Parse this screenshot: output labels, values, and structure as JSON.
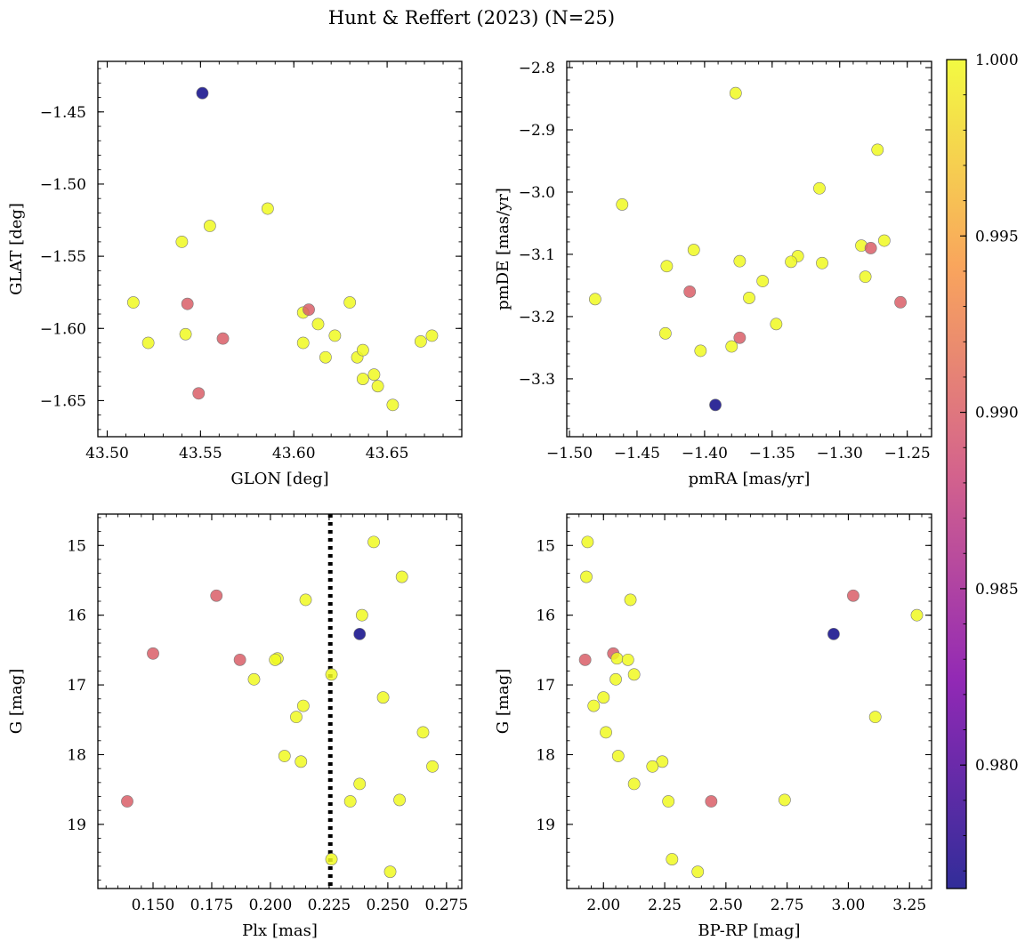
{
  "figure": {
    "title": "Hunt & Reffert (2023) (N=25)"
  },
  "colorbar": {
    "colormap": "plasma",
    "min": 0.9765,
    "max": 1.0,
    "ticks": [
      0.98,
      0.985,
      0.99,
      0.995,
      1.0
    ],
    "tick_labels": [
      "0.980",
      "0.985",
      "0.990",
      "0.995",
      "1.000"
    ]
  },
  "chart_data": [
    {
      "type": "scatter",
      "panel": "top-left",
      "xlabel": "GLON [deg]",
      "ylabel": "GLAT [deg]",
      "xlim": [
        43.495,
        43.69
      ],
      "ylim": [
        -1.675,
        -1.415
      ],
      "y_inverted": false,
      "xticks": [
        43.5,
        43.55,
        43.6,
        43.65
      ],
      "xtick_labels": [
        "43.50",
        "43.55",
        "43.60",
        "43.65"
      ],
      "yticks": [
        -1.45,
        -1.5,
        -1.55,
        -1.6,
        -1.65
      ],
      "ytick_labels": [
        "−1.45",
        "−1.50",
        "−1.55",
        "−1.60",
        "−1.65"
      ],
      "points": [
        {
          "x": 43.551,
          "y": -1.437,
          "p": 0.9765
        },
        {
          "x": 43.586,
          "y": -1.517,
          "p": 1.0
        },
        {
          "x": 43.555,
          "y": -1.529,
          "p": 1.0
        },
        {
          "x": 43.54,
          "y": -1.54,
          "p": 1.0
        },
        {
          "x": 43.514,
          "y": -1.582,
          "p": 1.0
        },
        {
          "x": 43.543,
          "y": -1.583,
          "p": 0.99
        },
        {
          "x": 43.522,
          "y": -1.61,
          "p": 1.0
        },
        {
          "x": 43.542,
          "y": -1.604,
          "p": 1.0
        },
        {
          "x": 43.562,
          "y": -1.607,
          "p": 0.99
        },
        {
          "x": 43.549,
          "y": -1.645,
          "p": 0.99
        },
        {
          "x": 43.605,
          "y": -1.589,
          "p": 1.0
        },
        {
          "x": 43.608,
          "y": -1.587,
          "p": 0.99
        },
        {
          "x": 43.613,
          "y": -1.597,
          "p": 1.0
        },
        {
          "x": 43.605,
          "y": -1.61,
          "p": 1.0
        },
        {
          "x": 43.617,
          "y": -1.62,
          "p": 1.0
        },
        {
          "x": 43.622,
          "y": -1.605,
          "p": 1.0
        },
        {
          "x": 43.63,
          "y": -1.582,
          "p": 1.0
        },
        {
          "x": 43.634,
          "y": -1.62,
          "p": 1.0
        },
        {
          "x": 43.637,
          "y": -1.615,
          "p": 1.0
        },
        {
          "x": 43.637,
          "y": -1.635,
          "p": 1.0
        },
        {
          "x": 43.643,
          "y": -1.632,
          "p": 1.0
        },
        {
          "x": 43.645,
          "y": -1.64,
          "p": 1.0
        },
        {
          "x": 43.653,
          "y": -1.653,
          "p": 1.0
        },
        {
          "x": 43.668,
          "y": -1.609,
          "p": 1.0
        },
        {
          "x": 43.674,
          "y": -1.605,
          "p": 1.0
        }
      ]
    },
    {
      "type": "scatter",
      "panel": "top-right",
      "xlabel": "pmRA [mas/yr]",
      "ylabel": "pmDE [mas/yr]",
      "xlim": [
        -1.502,
        -1.232
      ],
      "ylim": [
        -3.393,
        -2.79
      ],
      "y_inverted": false,
      "xticks": [
        -1.5,
        -1.45,
        -1.4,
        -1.35,
        -1.3,
        -1.25
      ],
      "xtick_labels": [
        "−1.50",
        "−1.45",
        "−1.40",
        "−1.35",
        "−1.30",
        "−1.25"
      ],
      "yticks": [
        -2.8,
        -2.9,
        -3.0,
        -3.1,
        -3.2,
        -3.3
      ],
      "ytick_labels": [
        "−2.8",
        "−2.9",
        "−3.0",
        "−3.1",
        "−3.2",
        "−3.3"
      ],
      "points": [
        {
          "x": -1.377,
          "y": -2.841,
          "p": 1.0
        },
        {
          "x": -1.272,
          "y": -2.932,
          "p": 1.0
        },
        {
          "x": -1.315,
          "y": -2.994,
          "p": 1.0
        },
        {
          "x": -1.461,
          "y": -3.02,
          "p": 1.0
        },
        {
          "x": -1.267,
          "y": -3.078,
          "p": 1.0
        },
        {
          "x": -1.284,
          "y": -3.086,
          "p": 1.0
        },
        {
          "x": -1.277,
          "y": -3.09,
          "p": 0.99
        },
        {
          "x": -1.408,
          "y": -3.093,
          "p": 1.0
        },
        {
          "x": -1.331,
          "y": -3.103,
          "p": 1.0
        },
        {
          "x": -1.374,
          "y": -3.111,
          "p": 1.0
        },
        {
          "x": -1.336,
          "y": -3.112,
          "p": 1.0
        },
        {
          "x": -1.313,
          "y": -3.114,
          "p": 1.0
        },
        {
          "x": -1.428,
          "y": -3.119,
          "p": 1.0
        },
        {
          "x": -1.281,
          "y": -3.136,
          "p": 1.0
        },
        {
          "x": -1.357,
          "y": -3.143,
          "p": 1.0
        },
        {
          "x": -1.411,
          "y": -3.16,
          "p": 0.99
        },
        {
          "x": -1.367,
          "y": -3.17,
          "p": 1.0
        },
        {
          "x": -1.481,
          "y": -3.172,
          "p": 1.0
        },
        {
          "x": -1.255,
          "y": -3.177,
          "p": 0.99
        },
        {
          "x": -1.347,
          "y": -3.212,
          "p": 1.0
        },
        {
          "x": -1.429,
          "y": -3.227,
          "p": 1.0
        },
        {
          "x": -1.374,
          "y": -3.234,
          "p": 0.99
        },
        {
          "x": -1.38,
          "y": -3.248,
          "p": 1.0
        },
        {
          "x": -1.403,
          "y": -3.255,
          "p": 1.0
        },
        {
          "x": -1.392,
          "y": -3.342,
          "p": 0.9765
        }
      ]
    },
    {
      "type": "scatter",
      "panel": "bottom-left",
      "xlabel": "Plx [mas]",
      "ylabel": "G [mag]",
      "xlim": [
        0.1265,
        0.2815
      ],
      "ylim": [
        19.92,
        14.55
      ],
      "y_inverted": true,
      "xticks": [
        0.15,
        0.175,
        0.2,
        0.225,
        0.25,
        0.275
      ],
      "xtick_labels": [
        "0.150",
        "0.175",
        "0.200",
        "0.225",
        "0.250",
        "0.275"
      ],
      "yticks": [
        15,
        16,
        17,
        18,
        19
      ],
      "ytick_labels": [
        "15",
        "16",
        "17",
        "18",
        "19"
      ],
      "vline": {
        "x": 0.2255,
        "style": "dotted"
      },
      "points": [
        {
          "x": 0.244,
          "y": 14.95,
          "p": 1.0
        },
        {
          "x": 0.256,
          "y": 15.45,
          "p": 1.0
        },
        {
          "x": 0.177,
          "y": 15.72,
          "p": 0.99
        },
        {
          "x": 0.215,
          "y": 15.78,
          "p": 1.0
        },
        {
          "x": 0.239,
          "y": 16.0,
          "p": 1.0
        },
        {
          "x": 0.238,
          "y": 16.27,
          "p": 0.9765
        },
        {
          "x": 0.15,
          "y": 16.55,
          "p": 0.99
        },
        {
          "x": 0.187,
          "y": 16.64,
          "p": 0.99
        },
        {
          "x": 0.203,
          "y": 16.62,
          "p": 1.0
        },
        {
          "x": 0.202,
          "y": 16.64,
          "p": 1.0
        },
        {
          "x": 0.226,
          "y": 16.85,
          "p": 1.0
        },
        {
          "x": 0.193,
          "y": 16.92,
          "p": 1.0
        },
        {
          "x": 0.248,
          "y": 17.18,
          "p": 1.0
        },
        {
          "x": 0.214,
          "y": 17.3,
          "p": 1.0
        },
        {
          "x": 0.211,
          "y": 17.46,
          "p": 1.0
        },
        {
          "x": 0.265,
          "y": 17.68,
          "p": 1.0
        },
        {
          "x": 0.206,
          "y": 18.02,
          "p": 1.0
        },
        {
          "x": 0.213,
          "y": 18.1,
          "p": 1.0
        },
        {
          "x": 0.269,
          "y": 18.17,
          "p": 1.0
        },
        {
          "x": 0.238,
          "y": 18.42,
          "p": 1.0
        },
        {
          "x": 0.139,
          "y": 18.67,
          "p": 0.99
        },
        {
          "x": 0.234,
          "y": 18.67,
          "p": 1.0
        },
        {
          "x": 0.255,
          "y": 18.65,
          "p": 1.0
        },
        {
          "x": 0.226,
          "y": 19.5,
          "p": 1.0
        },
        {
          "x": 0.251,
          "y": 19.68,
          "p": 1.0
        }
      ]
    },
    {
      "type": "scatter",
      "panel": "bottom-right",
      "xlabel": "BP-RP [mag]",
      "ylabel": "G [mag]",
      "xlim": [
        1.85,
        3.34
      ],
      "ylim": [
        19.92,
        14.55
      ],
      "y_inverted": true,
      "xticks": [
        2.0,
        2.25,
        2.5,
        2.75,
        3.0,
        3.25
      ],
      "xtick_labels": [
        "2.00",
        "2.25",
        "2.50",
        "2.75",
        "3.00",
        "3.25"
      ],
      "yticks": [
        15,
        16,
        17,
        18,
        19
      ],
      "ytick_labels": [
        "15",
        "16",
        "17",
        "18",
        "19"
      ],
      "points": [
        {
          "x": 1.935,
          "y": 14.95,
          "p": 1.0
        },
        {
          "x": 1.93,
          "y": 15.45,
          "p": 1.0
        },
        {
          "x": 3.02,
          "y": 15.72,
          "p": 0.99
        },
        {
          "x": 2.11,
          "y": 15.78,
          "p": 1.0
        },
        {
          "x": 3.28,
          "y": 16.0,
          "p": 1.0
        },
        {
          "x": 2.94,
          "y": 16.27,
          "p": 0.9765
        },
        {
          "x": 2.04,
          "y": 16.55,
          "p": 0.99
        },
        {
          "x": 1.925,
          "y": 16.64,
          "p": 0.99
        },
        {
          "x": 2.055,
          "y": 16.62,
          "p": 1.0
        },
        {
          "x": 2.1,
          "y": 16.64,
          "p": 1.0
        },
        {
          "x": 2.125,
          "y": 16.85,
          "p": 1.0
        },
        {
          "x": 2.05,
          "y": 16.92,
          "p": 1.0
        },
        {
          "x": 2.0,
          "y": 17.18,
          "p": 1.0
        },
        {
          "x": 1.96,
          "y": 17.3,
          "p": 1.0
        },
        {
          "x": 3.11,
          "y": 17.46,
          "p": 1.0
        },
        {
          "x": 2.01,
          "y": 17.68,
          "p": 1.0
        },
        {
          "x": 2.06,
          "y": 18.02,
          "p": 1.0
        },
        {
          "x": 2.24,
          "y": 18.1,
          "p": 1.0
        },
        {
          "x": 2.2,
          "y": 18.17,
          "p": 1.0
        },
        {
          "x": 2.125,
          "y": 18.42,
          "p": 1.0
        },
        {
          "x": 2.44,
          "y": 18.67,
          "p": 0.99
        },
        {
          "x": 2.265,
          "y": 18.67,
          "p": 1.0
        },
        {
          "x": 2.74,
          "y": 18.65,
          "p": 1.0
        },
        {
          "x": 2.28,
          "y": 19.5,
          "p": 1.0
        },
        {
          "x": 2.385,
          "y": 19.68,
          "p": 1.0
        }
      ]
    }
  ]
}
